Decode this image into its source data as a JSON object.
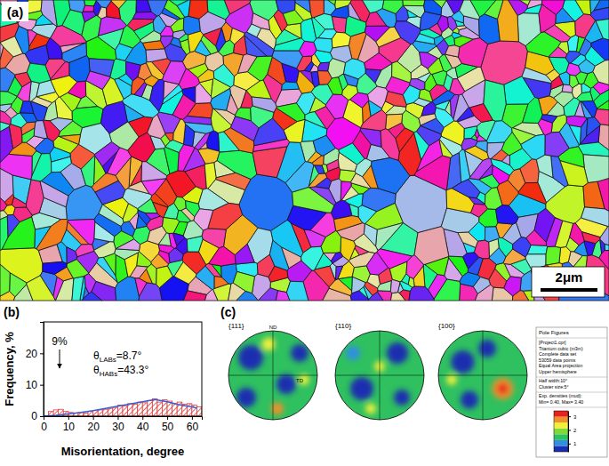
{
  "panel_labels": [
    "(a)",
    "(b)",
    "(c)"
  ],
  "ebsd_map": {
    "scale_bar": "2μm"
  },
  "chart_data": {
    "type": "histogram",
    "xlabel": "Misorientation, degree",
    "ylabel": "Frequency, %",
    "xlim": [
      0,
      64
    ],
    "ylim": [
      0,
      30
    ],
    "xticks": [
      0,
      10,
      20,
      30,
      40,
      50,
      60
    ],
    "yticks": [
      0,
      10,
      20
    ],
    "bins": [
      2,
      4,
      6,
      8,
      10,
      12,
      14,
      16,
      18,
      20,
      22,
      24,
      26,
      28,
      30,
      32,
      34,
      36,
      38,
      40,
      42,
      44,
      46,
      48,
      50,
      52,
      54,
      56,
      58,
      60,
      62,
      64
    ],
    "series": [
      {
        "type": "bar",
        "color": "#e03c3c",
        "values": [
          1.5,
          2.0,
          2.2,
          1.5,
          1.2,
          1.0,
          1.2,
          1.0,
          1.5,
          1.8,
          2.0,
          2.2,
          2.5,
          2.8,
          3.5,
          3.3,
          4.0,
          3.8,
          4.5,
          4.3,
          5.0,
          5.5,
          4.5,
          5.2,
          4.8,
          4.0,
          4.5,
          3.8,
          4.0,
          3.5,
          3.0
        ]
      },
      {
        "type": "line",
        "color": "#3b5fd6",
        "x": [
          0,
          5,
          10,
          15,
          20,
          25,
          30,
          35,
          40,
          45,
          50,
          55,
          60,
          62
        ],
        "values": [
          0,
          0.3,
          0.7,
          1.2,
          1.8,
          2.5,
          3.2,
          3.9,
          4.6,
          5.3,
          4.6,
          3.6,
          3.0,
          2.6
        ]
      }
    ],
    "annotations": [
      {
        "symbol": "θ",
        "subscript": "LABs",
        "text": "=8.7°"
      },
      {
        "symbol": "θ",
        "subscript": "HABs",
        "text": "=43.3°"
      },
      {
        "text": "9%"
      }
    ]
  },
  "pole_figures": {
    "figures": [
      {
        "label": "{111}",
        "axes": [
          "ND",
          "TD"
        ],
        "base_level": 1.5,
        "spots": [
          {
            "x": -0.5,
            "y": 0.4,
            "r": 0.28,
            "level": 0.5
          },
          {
            "x": 0.3,
            "y": -0.2,
            "r": 0.22,
            "level": 0.6
          },
          {
            "x": 0.6,
            "y": 0.5,
            "r": 0.2,
            "level": 0.7
          },
          {
            "x": -0.6,
            "y": -0.5,
            "r": 0.22,
            "level": 0.6
          },
          {
            "x": -0.1,
            "y": 0.7,
            "r": 0.15,
            "level": 2.3
          },
          {
            "x": 0.1,
            "y": -0.75,
            "r": 0.14,
            "level": 2.6
          },
          {
            "x": 0.7,
            "y": -0.1,
            "r": 0.12,
            "level": 2.2
          }
        ]
      },
      {
        "label": "{110}",
        "base_level": 1.5,
        "spots": [
          {
            "x": -0.4,
            "y": -0.3,
            "r": 0.26,
            "level": 0.6
          },
          {
            "x": 0.4,
            "y": 0.5,
            "r": 0.24,
            "level": 0.5
          },
          {
            "x": 0.5,
            "y": -0.5,
            "r": 0.18,
            "level": 0.7
          },
          {
            "x": -0.6,
            "y": 0.5,
            "r": 0.16,
            "level": 1.0
          },
          {
            "x": 0.0,
            "y": 0.2,
            "r": 0.12,
            "level": 2.2
          },
          {
            "x": -0.2,
            "y": -0.75,
            "r": 0.12,
            "level": 2.3
          }
        ]
      },
      {
        "label": "{100}",
        "base_level": 1.5,
        "spots": [
          {
            "x": -0.45,
            "y": 0.3,
            "r": 0.26,
            "level": 0.5
          },
          {
            "x": 0.1,
            "y": 0.6,
            "r": 0.2,
            "level": 0.6
          },
          {
            "x": -0.3,
            "y": -0.55,
            "r": 0.2,
            "level": 0.7
          },
          {
            "x": 0.45,
            "y": -0.3,
            "r": 0.24,
            "level": 2.6
          },
          {
            "x": 0.45,
            "y": -0.3,
            "r": 0.12,
            "level": 3.3
          },
          {
            "x": -0.7,
            "y": -0.1,
            "r": 0.12,
            "level": 2.2
          }
        ]
      }
    ],
    "legend": {
      "title": "Pole Figures",
      "lines": [
        "[Project1.cpr]",
        "Titanium cubic (m3m)",
        "Complete data set",
        "53059 data points",
        "Equal Area projection",
        "Upper hemisphere",
        "Half width:10°",
        "Cluster size:5°",
        "Exp. densities (mud):",
        "Min= 0.40, Max= 3.40"
      ],
      "colorbar": {
        "colors": [
          "#1a2fb0",
          "#2f8fe0",
          "#2fc060",
          "#7fd83a",
          "#f0f03a",
          "#f0902a",
          "#e82020"
        ],
        "range": [
          0.4,
          3.4
        ],
        "ticks": [
          1,
          2,
          3
        ]
      }
    }
  }
}
